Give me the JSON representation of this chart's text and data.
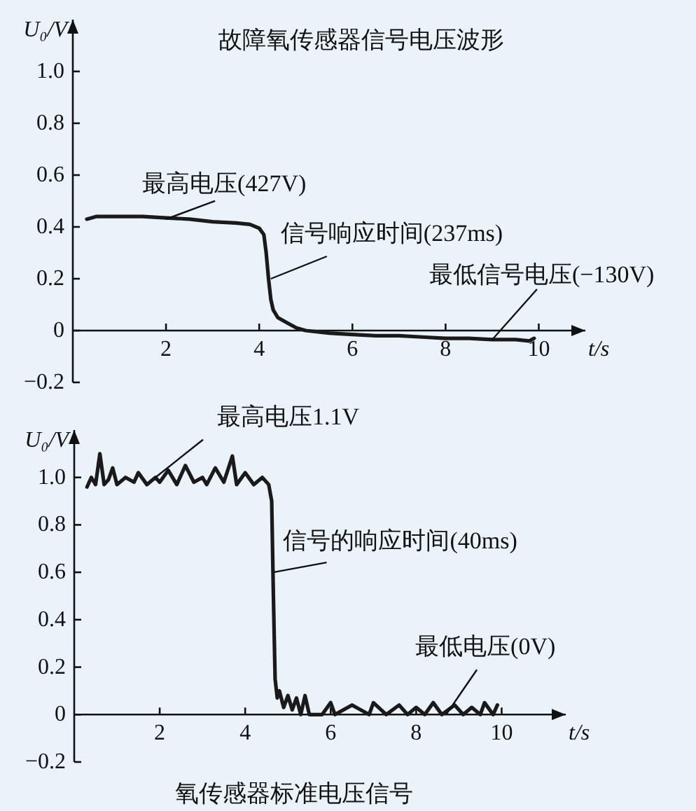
{
  "chart_data": [
    {
      "type": "line",
      "title": "故障氧传感器信号电压波形",
      "xlabel": "t/s",
      "ylabel": "U₀/V",
      "xlim": [
        0,
        11
      ],
      "ylim": [
        -0.2,
        1.2
      ],
      "xticks": [
        2,
        4,
        6,
        8,
        10
      ],
      "yticks": [
        {
          "value": -0.2,
          "label": "−0.2"
        },
        {
          "value": 0,
          "label": "0"
        },
        {
          "value": 0.2,
          "label": "0.2"
        },
        {
          "value": 0.4,
          "label": "0.4"
        },
        {
          "value": 0.6,
          "label": "0.6"
        },
        {
          "value": 0.8,
          "label": "0.8"
        },
        {
          "value": 1.0,
          "label": "1.0"
        }
      ],
      "grid": false,
      "series": [
        {
          "color": "#1a1a1a",
          "x": [
            0.3,
            0.5,
            1.0,
            1.5,
            2.0,
            2.5,
            3.0,
            3.5,
            3.8,
            4.0,
            4.1,
            4.15,
            4.2,
            4.25,
            4.3,
            4.4,
            4.6,
            4.8,
            5.0,
            5.5,
            6.0,
            6.5,
            7.0,
            7.5,
            8.0,
            8.5,
            9.0,
            9.5,
            9.8,
            9.9
          ],
          "values": [
            0.43,
            0.44,
            0.44,
            0.44,
            0.435,
            0.43,
            0.42,
            0.415,
            0.41,
            0.395,
            0.37,
            0.3,
            0.2,
            0.12,
            0.08,
            0.05,
            0.03,
            0.01,
            0.0,
            -0.01,
            -0.015,
            -0.02,
            -0.02,
            -0.025,
            -0.03,
            -0.03,
            -0.035,
            -0.035,
            -0.04,
            -0.03
          ]
        }
      ],
      "annotations": [
        {
          "text": "最高电压(427V)",
          "x": 2,
          "y": 0.43
        },
        {
          "text": "信号响应时间(237ms)",
          "x": 4.25,
          "y": 0.2
        },
        {
          "text": "最低信号电压(−130V)",
          "x": 9.0,
          "y": -0.035
        }
      ]
    },
    {
      "type": "line",
      "title": "氧传感器标准电压信号",
      "xlabel": "t/s",
      "ylabel": "U₀/V",
      "xlim": [
        0,
        11.5
      ],
      "ylim": [
        -0.2,
        1.2
      ],
      "xticks": [
        2,
        4,
        6,
        8,
        10
      ],
      "yticks": [
        {
          "value": -0.2,
          "label": "−0.2"
        },
        {
          "value": 0,
          "label": "0"
        },
        {
          "value": 0.2,
          "label": "0.2"
        },
        {
          "value": 0.4,
          "label": "0.4"
        },
        {
          "value": 0.6,
          "label": "0.6"
        },
        {
          "value": 0.8,
          "label": "0.8"
        },
        {
          "value": 1.0,
          "label": "1.0"
        }
      ],
      "grid": false,
      "series": [
        {
          "color": "#1a1a1a",
          "x": [
            0.3,
            0.4,
            0.5,
            0.6,
            0.7,
            0.8,
            0.9,
            1.0,
            1.2,
            1.4,
            1.5,
            1.7,
            1.9,
            2.0,
            2.2,
            2.4,
            2.6,
            2.8,
            3.0,
            3.1,
            3.3,
            3.5,
            3.7,
            3.8,
            4.0,
            4.2,
            4.4,
            4.55,
            4.62,
            4.66,
            4.7,
            4.75,
            4.8,
            4.9,
            5.0,
            5.1,
            5.2,
            5.3,
            5.4,
            5.5,
            5.8,
            6.0,
            6.1,
            6.5,
            6.9,
            7.0,
            7.3,
            7.6,
            7.8,
            8.0,
            8.2,
            8.4,
            8.6,
            8.9,
            9.1,
            9.3,
            9.5,
            9.6,
            9.8,
            9.9
          ],
          "values": [
            0.96,
            1.0,
            0.97,
            1.1,
            0.97,
            0.99,
            1.04,
            0.97,
            1.0,
            0.98,
            1.02,
            0.97,
            1.0,
            0.98,
            1.03,
            0.97,
            1.05,
            0.98,
            1.0,
            0.97,
            1.04,
            0.98,
            1.09,
            0.97,
            1.02,
            0.97,
            1.0,
            0.97,
            0.9,
            0.5,
            0.15,
            0.07,
            0.1,
            0.03,
            0.08,
            0.02,
            0.07,
            0.0,
            0.08,
            0.0,
            0.0,
            0.05,
            0.0,
            0.04,
            0.0,
            0.05,
            0.0,
            0.04,
            0.0,
            0.03,
            0.0,
            0.05,
            0.0,
            0.04,
            0.0,
            0.03,
            0.0,
            0.05,
            0.0,
            0.04
          ]
        }
      ],
      "annotations": [
        {
          "text": "最高电压1.1V",
          "x": 1.9,
          "y": 1.0
        },
        {
          "text": "信号的响应时间(40ms)",
          "x": 4.66,
          "y": 0.6
        },
        {
          "text": "最低电压(0V)",
          "x": 8.7,
          "y": 0.0
        }
      ]
    }
  ]
}
